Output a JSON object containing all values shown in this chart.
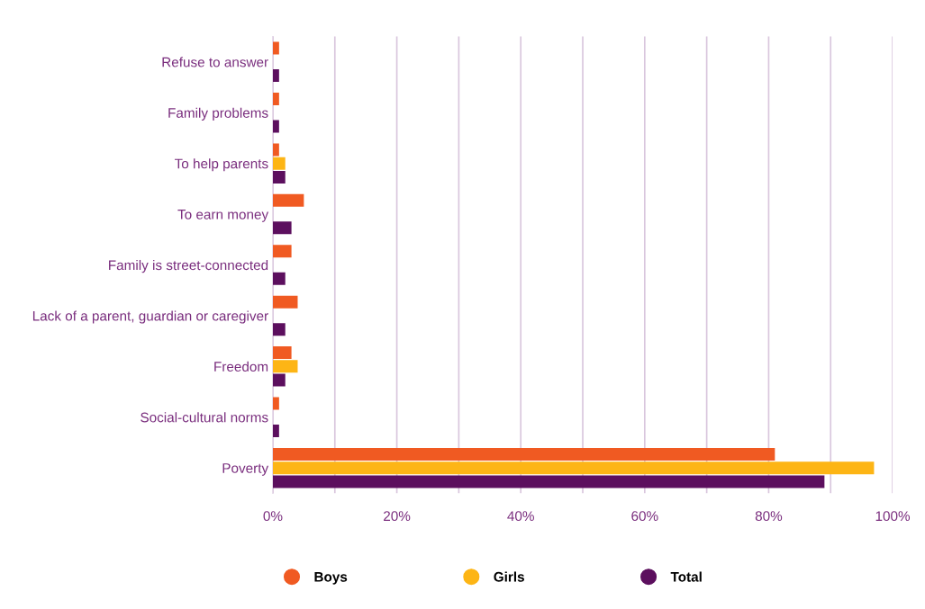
{
  "chart_data": {
    "type": "bar",
    "orientation": "horizontal",
    "categories": [
      "Refuse to answer",
      "Family problems",
      "To help parents",
      "To earn money",
      "Family is street-connected",
      "Lack of a parent, guardian or caregiver",
      "Freedom",
      "Social-cultural norms",
      "Poverty"
    ],
    "series": [
      {
        "name": "Boys",
        "color": "#f05a22",
        "values": [
          1,
          1,
          1,
          5,
          3,
          4,
          3,
          1,
          81
        ]
      },
      {
        "name": "Girls",
        "color": "#fdb515",
        "values": [
          null,
          null,
          2,
          null,
          null,
          null,
          4,
          null,
          97
        ]
      },
      {
        "name": "Total",
        "color": "#5c0f5e",
        "values": [
          1,
          1,
          2,
          3,
          2,
          2,
          2,
          1,
          89
        ]
      }
    ],
    "xlim": [
      0,
      100
    ],
    "xticks": [
      {
        "value": 0,
        "label": "0%"
      },
      {
        "value": 10,
        "label": null
      },
      {
        "value": 20,
        "label": "20%"
      },
      {
        "value": 30,
        "label": null
      },
      {
        "value": 40,
        "label": "40%"
      },
      {
        "value": 50,
        "label": null
      },
      {
        "value": 60,
        "label": "60%"
      },
      {
        "value": 70,
        "label": null
      },
      {
        "value": 80,
        "label": "80%"
      },
      {
        "value": 90,
        "label": null
      },
      {
        "value": 100,
        "label": "100%"
      }
    ],
    "grid": "x",
    "legend": "bottom"
  }
}
